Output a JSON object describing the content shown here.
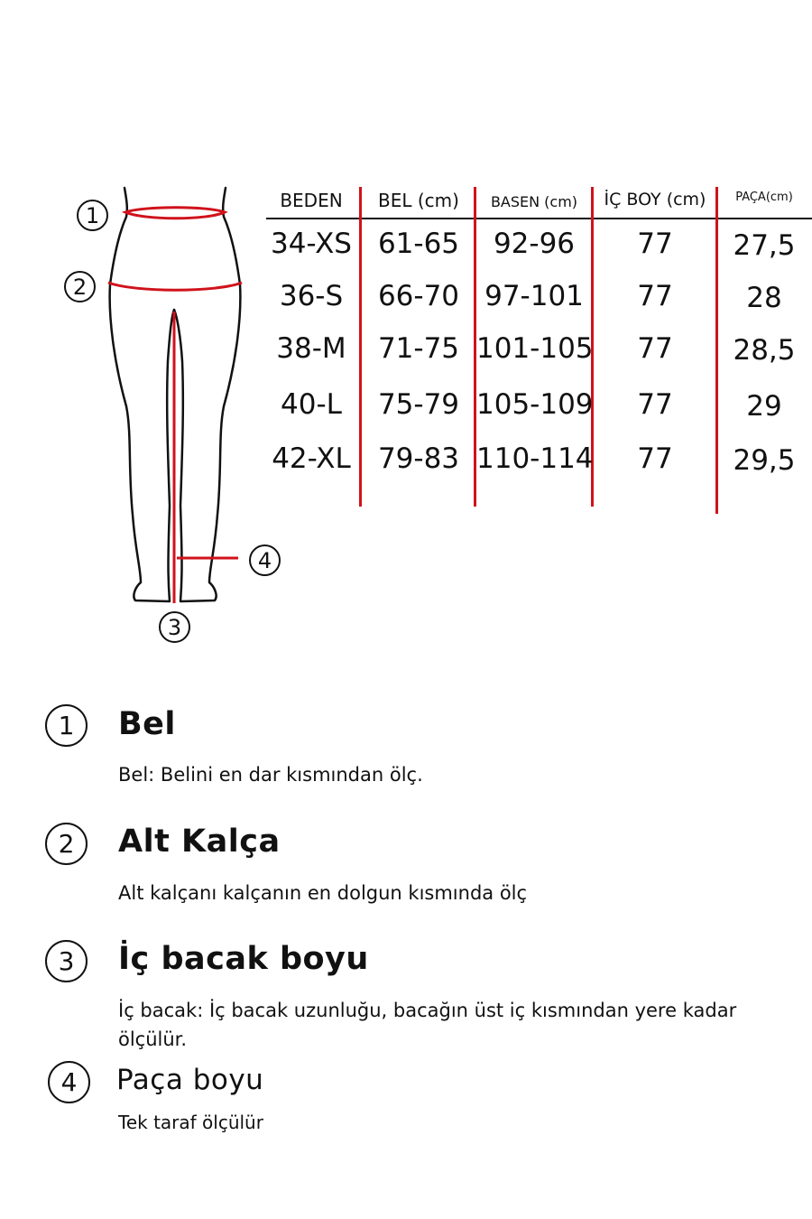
{
  "table": {
    "headers": [
      "BEDEN",
      "BEL (cm)",
      "BASEN (cm)",
      "İÇ BOY (cm)",
      "PAÇA(cm)"
    ],
    "rows": [
      [
        "34-XS",
        "61-65",
        "92-96",
        "77",
        "27,5"
      ],
      [
        "36-S",
        "66-70",
        "97-101",
        "77",
        "28"
      ],
      [
        "38-M",
        "71-75",
        "101-105",
        "77",
        "28,5"
      ],
      [
        "40-L",
        "75-79",
        "105-109",
        "77",
        "29"
      ],
      [
        "42-XL",
        "79-83",
        "110-114",
        "77",
        "29,5"
      ]
    ]
  },
  "diagram": {
    "markers": [
      "1",
      "2",
      "3",
      "4"
    ],
    "accent_color": "#d0121b"
  },
  "legend": [
    {
      "number": "1",
      "title": "Bel",
      "description": "Bel: Belini en dar kısmından ölç."
    },
    {
      "number": "2",
      "title": "Alt Kalça",
      "description": "Alt kalçanı kalçanın en dolgun kısmında ölç"
    },
    {
      "number": "3",
      "title": "İç bacak boyu",
      "description": "İç bacak: İç bacak uzunluğu, bacağın üst iç kısmından yere kadar ölçülür."
    },
    {
      "number": "4",
      "title": "Paça boyu",
      "description": "Tek taraf ölçülür"
    }
  ]
}
